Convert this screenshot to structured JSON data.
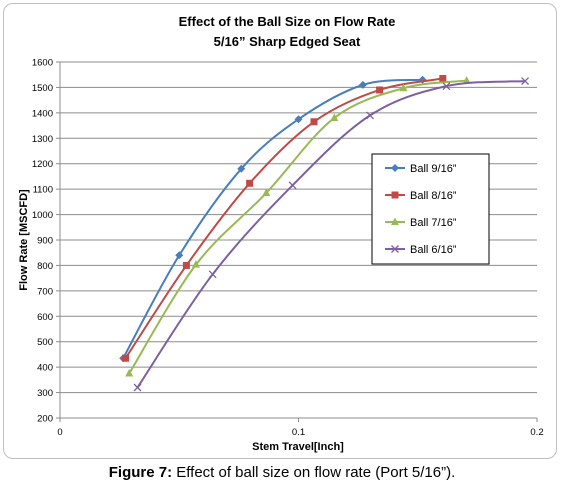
{
  "chart_data": {
    "type": "line",
    "title": "Effect of the Ball Size on Flow Rate",
    "subtitle": "5/16” Sharp Edged Seat",
    "xlabel": "Stem Travel[Inch]",
    "ylabel": "Flow Rate [MSCFD]",
    "xlim": [
      0,
      0.2
    ],
    "ylim": [
      200,
      1600
    ],
    "xticks": [
      "0",
      "0.1",
      "0.2"
    ],
    "yticks": [
      "200",
      "300",
      "400",
      "500",
      "600",
      "700",
      "800",
      "900",
      "1000",
      "1100",
      "1200",
      "1300",
      "1400",
      "1500",
      "1600"
    ],
    "grid": "horizontal-major",
    "legend_position": "right",
    "series": [
      {
        "name": "Ball 9/16”",
        "color": "#4a7ebb",
        "marker": "diamond",
        "x": [
          0.0265,
          0.05,
          0.076,
          0.1,
          0.127,
          0.152
        ],
        "y": [
          435,
          840,
          1180,
          1375,
          1510,
          1530
        ]
      },
      {
        "name": "Ball 8/16”",
        "color": "#be4b48",
        "marker": "square",
        "x": [
          0.0275,
          0.053,
          0.0795,
          0.1065,
          0.134,
          0.1605
        ],
        "y": [
          435,
          800,
          1123,
          1365,
          1490,
          1535
        ]
      },
      {
        "name": "Ball 7/16”",
        "color": "#98b954",
        "marker": "triangle",
        "x": [
          0.029,
          0.057,
          0.0865,
          0.115,
          0.144,
          0.1705
        ],
        "y": [
          375,
          803,
          1085,
          1380,
          1497,
          1527
        ]
      },
      {
        "name": "Ball 6/16”",
        "color": "#7d60a0",
        "marker": "x",
        "x": [
          0.0325,
          0.064,
          0.0975,
          0.13,
          0.162,
          0.195
        ],
        "y": [
          320,
          765,
          1115,
          1390,
          1505,
          1525
        ]
      }
    ]
  },
  "caption": {
    "label": "Figure 7:",
    "text": " Effect of ball size on flow rate (Port 5/16”)."
  }
}
